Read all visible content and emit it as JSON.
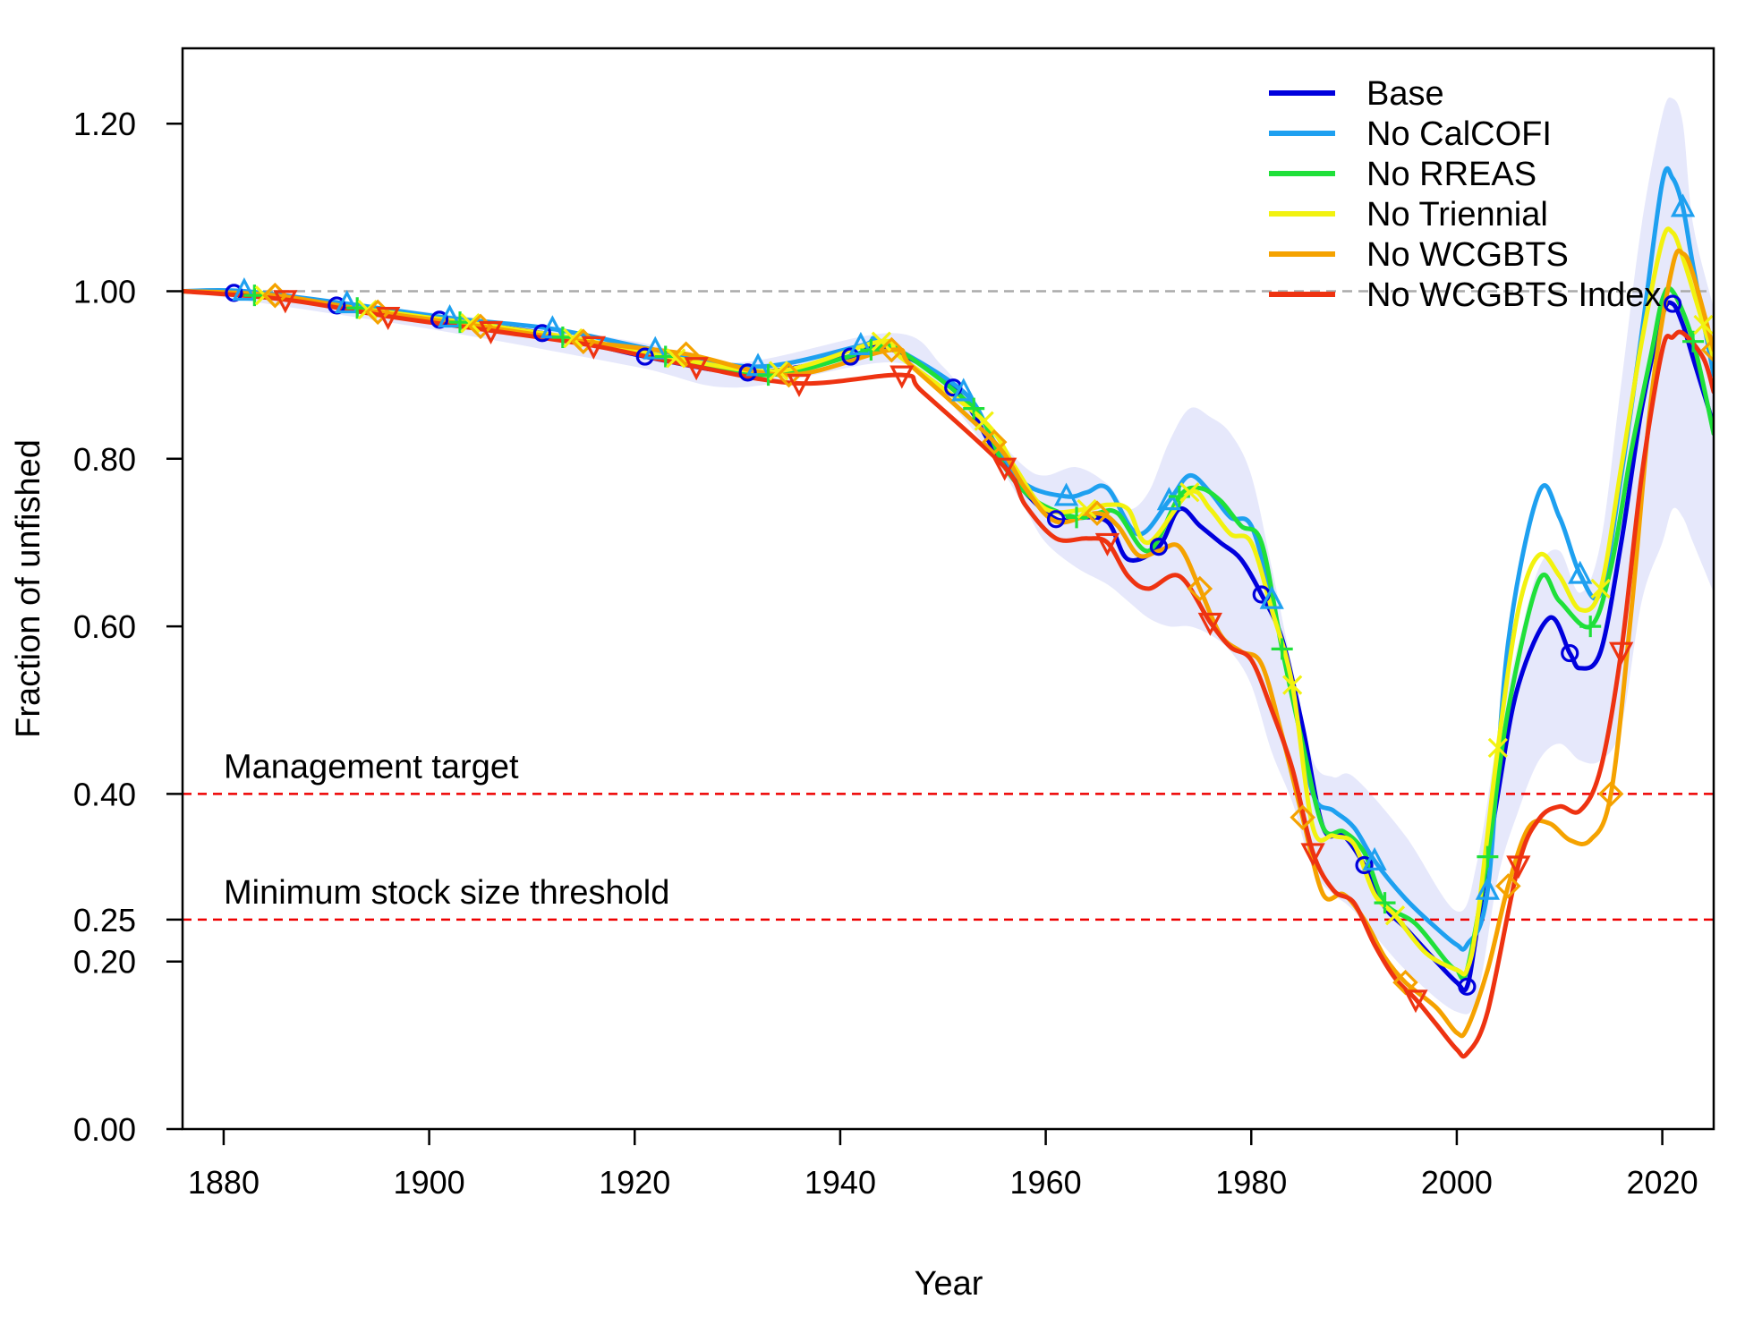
{
  "chart_data": {
    "type": "line",
    "title": "",
    "xlabel": "Year",
    "ylabel": "Fraction of unfished",
    "xlim": [
      1876,
      2025
    ],
    "ylim": [
      0,
      1.28
    ],
    "x_ticks": [
      "1880",
      "1900",
      "1920",
      "1940",
      "1960",
      "1980",
      "2000",
      "2020"
    ],
    "y_ticks": [
      "0.00",
      "0.20",
      "0.25",
      "0.40",
      "0.60",
      "0.80",
      "1.00",
      "1.20"
    ],
    "grid": false,
    "legend_position": "top-right",
    "reference_lines": [
      {
        "y": 1.0,
        "color": "#aaaaaa",
        "label": ""
      },
      {
        "y": 0.4,
        "color": "#ee0000",
        "label": "Management target"
      },
      {
        "y": 0.25,
        "color": "#ee0000",
        "label": "Minimum stock size threshold"
      }
    ],
    "uncertainty_band": {
      "series": "Base",
      "color": "#e6e8fb",
      "x": [
        1876,
        1900,
        1920,
        1930,
        1945,
        1950,
        1955,
        1958,
        1960,
        1963,
        1966,
        1968,
        1970,
        1972,
        1974,
        1976,
        1978,
        1980,
        1982,
        1984,
        1986,
        1988,
        1990,
        1995,
        2000,
        2002,
        2004,
        2006,
        2008,
        2010,
        2012,
        2014,
        2016,
        2018,
        2020,
        2021,
        2022,
        2023,
        2025
      ],
      "upper": [
        1.0,
        0.975,
        0.94,
        0.915,
        0.95,
        0.91,
        0.83,
        0.79,
        0.78,
        0.79,
        0.77,
        0.74,
        0.76,
        0.82,
        0.86,
        0.85,
        0.83,
        0.78,
        0.67,
        0.55,
        0.44,
        0.42,
        0.42,
        0.35,
        0.26,
        0.32,
        0.47,
        0.58,
        0.67,
        0.69,
        0.64,
        0.7,
        0.89,
        1.08,
        1.21,
        1.23,
        1.2,
        1.08,
        0.98
      ],
      "lower": [
        1.0,
        0.955,
        0.91,
        0.885,
        0.915,
        0.875,
        0.8,
        0.74,
        0.7,
        0.67,
        0.65,
        0.63,
        0.61,
        0.6,
        0.6,
        0.59,
        0.57,
        0.53,
        0.45,
        0.39,
        0.31,
        0.28,
        0.26,
        0.19,
        0.14,
        0.16,
        0.3,
        0.38,
        0.44,
        0.46,
        0.44,
        0.44,
        0.48,
        0.63,
        0.7,
        0.74,
        0.73,
        0.7,
        0.64
      ]
    },
    "series": [
      {
        "name": "Base",
        "color": "#0000dd",
        "marker": "circle",
        "x": [
          1876,
          1881,
          1891,
          1901,
          1911,
          1921,
          1931,
          1941,
          1944,
          1951,
          1955,
          1958,
          1961,
          1963,
          1966,
          1968,
          1971,
          1973,
          1975,
          1977,
          1979,
          1981,
          1983,
          1985,
          1987,
          1989,
          1991,
          1993,
          1995,
          1998,
          2000,
          2001,
          2002,
          2004,
          2006,
          2009,
          2011,
          2012,
          2014,
          2016,
          2018,
          2020,
          2021,
          2022,
          2023,
          2025
        ],
        "values": [
          1.0,
          0.998,
          0.983,
          0.966,
          0.95,
          0.922,
          0.903,
          0.922,
          0.935,
          0.885,
          0.81,
          0.76,
          0.728,
          0.73,
          0.725,
          0.68,
          0.695,
          0.74,
          0.72,
          0.7,
          0.68,
          0.638,
          0.585,
          0.48,
          0.36,
          0.35,
          0.315,
          0.265,
          0.24,
          0.2,
          0.175,
          0.17,
          0.24,
          0.4,
          0.53,
          0.61,
          0.568,
          0.55,
          0.57,
          0.7,
          0.86,
          0.97,
          0.985,
          0.96,
          0.92,
          0.84
        ],
        "marker_x": [
          1881,
          1891,
          1901,
          1911,
          1921,
          1931,
          1941,
          1951,
          1961,
          1971,
          1981,
          1991,
          2001,
          2011,
          2021
        ]
      },
      {
        "name": "No CalCOFI",
        "color": "#1ea0f0",
        "marker": "triangle-up",
        "x": [
          1876,
          1882,
          1892,
          1902,
          1912,
          1922,
          1932,
          1942,
          1944,
          1952,
          1955,
          1958,
          1962,
          1964,
          1966,
          1969,
          1972,
          1974,
          1976,
          1978,
          1980,
          1982,
          1984,
          1986,
          1988,
          1990,
          1992,
          1995,
          1998,
          2000,
          2001,
          2003,
          2005,
          2008,
          2010,
          2012,
          2014,
          2016,
          2018,
          2020,
          2021,
          2022,
          2023,
          2025
        ],
        "values": [
          1.0,
          1.0,
          0.985,
          0.968,
          0.955,
          0.93,
          0.91,
          0.935,
          0.94,
          0.88,
          0.82,
          0.77,
          0.755,
          0.76,
          0.765,
          0.71,
          0.75,
          0.78,
          0.76,
          0.73,
          0.72,
          0.632,
          0.52,
          0.4,
          0.38,
          0.36,
          0.32,
          0.275,
          0.24,
          0.22,
          0.22,
          0.285,
          0.58,
          0.76,
          0.73,
          0.662,
          0.64,
          0.78,
          0.95,
          1.13,
          1.135,
          1.1,
          1.03,
          0.9
        ],
        "marker_x": [
          1882,
          1892,
          1902,
          1912,
          1922,
          1932,
          1942,
          1952,
          1962,
          1972,
          1982,
          1992,
          2003,
          2012,
          2022
        ]
      },
      {
        "name": "No RREAS",
        "color": "#1fe03a",
        "marker": "plus",
        "x": [
          1876,
          1883,
          1893,
          1903,
          1913,
          1923,
          1933,
          1943,
          1945,
          1953,
          1956,
          1959,
          1963,
          1965,
          1967,
          1970,
          1973,
          1975,
          1977,
          1979,
          1981,
          1983,
          1985,
          1987,
          1989,
          1991,
          1993,
          1996,
          1999,
          2000,
          2001,
          2003,
          2005,
          2008,
          2010,
          2013,
          2015,
          2017,
          2019,
          2020,
          2021,
          2023,
          2025
        ],
        "values": [
          1.0,
          0.995,
          0.98,
          0.963,
          0.945,
          0.922,
          0.9,
          0.93,
          0.935,
          0.86,
          0.79,
          0.75,
          0.73,
          0.735,
          0.735,
          0.69,
          0.755,
          0.765,
          0.75,
          0.72,
          0.7,
          0.573,
          0.46,
          0.36,
          0.355,
          0.33,
          0.27,
          0.245,
          0.2,
          0.19,
          0.19,
          0.325,
          0.5,
          0.655,
          0.63,
          0.6,
          0.67,
          0.81,
          0.93,
          0.99,
          1.0,
          0.94,
          0.83
        ],
        "marker_x": [
          1883,
          1893,
          1903,
          1913,
          1923,
          1933,
          1943,
          1953,
          1963,
          1973,
          1983,
          1993,
          2003,
          2013,
          2023
        ]
      },
      {
        "name": "No Triennial",
        "color": "#f2f20f",
        "marker": "cross",
        "x": [
          1876,
          1884,
          1894,
          1904,
          1914,
          1924,
          1934,
          1944,
          1946,
          1954,
          1957,
          1960,
          1964,
          1966,
          1968,
          1970,
          1974,
          1976,
          1978,
          1980,
          1982,
          1984,
          1986,
          1988,
          1990,
          1992,
          1994,
          1997,
          2000,
          2001,
          2002,
          2004,
          2006,
          2008,
          2010,
          2012,
          2014,
          2016,
          2018,
          2020,
          2021,
          2022,
          2024,
          2025
        ],
        "values": [
          1.0,
          0.995,
          0.978,
          0.962,
          0.944,
          0.92,
          0.905,
          0.94,
          0.92,
          0.845,
          0.79,
          0.74,
          0.74,
          0.745,
          0.74,
          0.7,
          0.76,
          0.74,
          0.71,
          0.7,
          0.62,
          0.53,
          0.36,
          0.35,
          0.34,
          0.28,
          0.255,
          0.21,
          0.19,
          0.19,
          0.25,
          0.455,
          0.62,
          0.685,
          0.66,
          0.62,
          0.645,
          0.79,
          0.94,
          1.06,
          1.07,
          1.04,
          0.96,
          0.92
        ],
        "marker_x": [
          1884,
          1894,
          1904,
          1914,
          1924,
          1934,
          1944,
          1954,
          1964,
          1974,
          1984,
          1994,
          2004,
          2014,
          2024
        ]
      },
      {
        "name": "No WCGBTS",
        "color": "#f5a200",
        "marker": "diamond",
        "x": [
          1876,
          1885,
          1895,
          1905,
          1915,
          1925,
          1935,
          1945,
          1947,
          1955,
          1958,
          1961,
          1965,
          1967,
          1969,
          1971,
          1973,
          1975,
          1977,
          1979,
          1981,
          1983,
          1985,
          1987,
          1989,
          1991,
          1993,
          1995,
          1998,
          2000,
          2001,
          2003,
          2005,
          2007,
          2009,
          2011,
          2013,
          2015,
          2017,
          2019,
          2021,
          2022,
          2023,
          2025
        ],
        "values": [
          1.0,
          0.995,
          0.975,
          0.958,
          0.94,
          0.925,
          0.9,
          0.93,
          0.91,
          0.82,
          0.765,
          0.725,
          0.735,
          0.72,
          0.685,
          0.69,
          0.695,
          0.645,
          0.59,
          0.57,
          0.555,
          0.47,
          0.372,
          0.28,
          0.28,
          0.25,
          0.205,
          0.175,
          0.145,
          0.115,
          0.12,
          0.19,
          0.29,
          0.36,
          0.365,
          0.345,
          0.345,
          0.4,
          0.62,
          0.88,
          1.03,
          1.045,
          1.02,
          0.93
        ],
        "marker_x": [
          1885,
          1895,
          1905,
          1915,
          1925,
          1935,
          1945,
          1955,
          1965,
          1975,
          1985,
          1995,
          2005,
          2015,
          2025
        ]
      },
      {
        "name": "No WCGBTS Index",
        "color": "#ee3311",
        "marker": "triangle-down",
        "x": [
          1876,
          1886,
          1896,
          1906,
          1916,
          1926,
          1936,
          1946,
          1948,
          1956,
          1958,
          1961,
          1964,
          1966,
          1968,
          1970,
          1973,
          1976,
          1978,
          1980,
          1982,
          1984,
          1986,
          1988,
          1990,
          1992,
          1994,
          1996,
          1998,
          2000,
          2001,
          2003,
          2006,
          2008,
          2010,
          2012,
          2014,
          2016,
          2018,
          2020,
          2021,
          2022,
          2024,
          2025
        ],
        "values": [
          1.0,
          0.99,
          0.97,
          0.953,
          0.935,
          0.91,
          0.89,
          0.9,
          0.88,
          0.79,
          0.745,
          0.705,
          0.705,
          0.7,
          0.66,
          0.645,
          0.66,
          0.605,
          0.575,
          0.56,
          0.5,
          0.43,
          0.33,
          0.285,
          0.27,
          0.22,
          0.18,
          0.155,
          0.125,
          0.095,
          0.09,
          0.14,
          0.315,
          0.37,
          0.385,
          0.38,
          0.43,
          0.57,
          0.78,
          0.93,
          0.945,
          0.95,
          0.92,
          0.88
        ],
        "marker_x": [
          1886,
          1896,
          1906,
          1916,
          1926,
          1936,
          1946,
          1956,
          1966,
          1976,
          1986,
          1996,
          2006,
          2016
        ]
      }
    ]
  }
}
